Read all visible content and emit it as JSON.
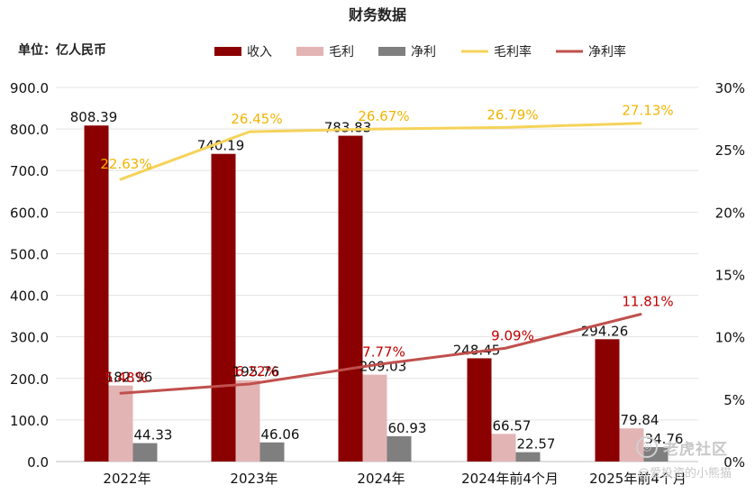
{
  "chart_data": {
    "type": "bar",
    "title": "财务数据",
    "unit_label": "单位：亿人民币",
    "categories": [
      "2022年",
      "2023年",
      "2024年",
      "2024年前4个月",
      "2025年前4个月"
    ],
    "series": [
      {
        "name": "收入",
        "kind": "bar",
        "axis": "left",
        "color": "#8b0000",
        "values": [
          808.39,
          740.19,
          783.83,
          248.45,
          294.26
        ],
        "labels": [
          "808.39",
          "740.19",
          "783.83",
          "248.45",
          "294.26"
        ]
      },
      {
        "name": "毛利",
        "kind": "bar",
        "axis": "left",
        "color": "#e3b4b4",
        "values": [
          182.96,
          195.76,
          209.03,
          66.57,
          79.84
        ],
        "labels": [
          "182.96",
          "195.76",
          "209.03",
          "66.57",
          "79.84"
        ]
      },
      {
        "name": "净利",
        "kind": "bar",
        "axis": "left",
        "color": "#7f7f7f",
        "values": [
          44.33,
          46.06,
          60.93,
          22.57,
          34.76
        ],
        "labels": [
          "44.33",
          "46.06",
          "60.93",
          "22.57",
          "34.76"
        ]
      },
      {
        "name": "毛利率",
        "kind": "line",
        "axis": "right",
        "color": "#f5d35a",
        "label_color": "#f2b400",
        "values": [
          22.63,
          26.45,
          26.67,
          26.79,
          27.13
        ],
        "labels": [
          "22.63%",
          "26.45%",
          "26.67%",
          "26.79%",
          "27.13%"
        ]
      },
      {
        "name": "净利率",
        "kind": "line",
        "axis": "right",
        "color": "#c0504d",
        "label_color": "#c00000",
        "values": [
          5.48,
          6.22,
          7.77,
          9.09,
          11.81
        ],
        "labels": [
          "5.48%",
          "6.22%",
          "7.77%",
          "9.09%",
          "11.81%"
        ]
      }
    ],
    "y_left": {
      "range": [
        0,
        900
      ],
      "ticks": [
        "0.0",
        "100.0",
        "200.0",
        "300.0",
        "400.0",
        "500.0",
        "600.0",
        "700.0",
        "800.0",
        "900.0"
      ]
    },
    "y_right": {
      "range": [
        0,
        30
      ],
      "ticks": [
        "0%",
        "5%",
        "10%",
        "15%",
        "20%",
        "25%",
        "30%"
      ]
    },
    "grid": true,
    "legend_position": "top"
  },
  "watermark": {
    "logo_glyph": "◎",
    "title": "老虎社区",
    "subtitle": "@爱投资的小熊猫"
  }
}
